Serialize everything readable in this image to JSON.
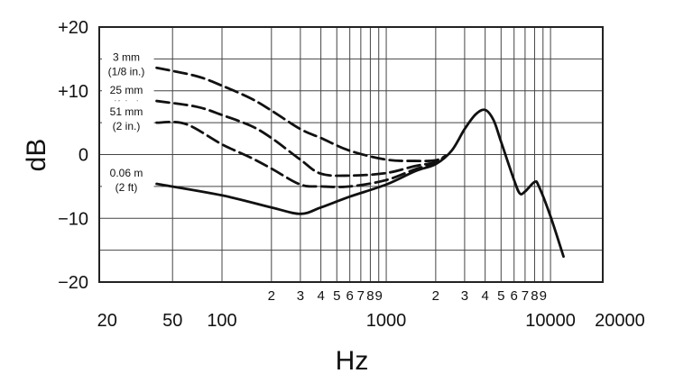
{
  "chart_data": {
    "type": "line",
    "title": "",
    "xlabel": "Hz",
    "ylabel": "dB",
    "xscale": "log",
    "xlim": [
      17.9,
      20800
    ],
    "ylim": [
      -20,
      20
    ],
    "grid": true,
    "y_ticks": [
      {
        "value": 20,
        "label": "+20"
      },
      {
        "value": 10,
        "label": "+10"
      },
      {
        "value": 0,
        "label": "0"
      },
      {
        "value": -10,
        "label": "−10"
      },
      {
        "value": -20,
        "label": "−20"
      }
    ],
    "y_grid": [
      20,
      15,
      10,
      5,
      0,
      -5,
      -10,
      -15,
      -20
    ],
    "x_grid": [
      50,
      100,
      200,
      300,
      400,
      500,
      600,
      700,
      800,
      900,
      1000,
      2000,
      3000,
      4000,
      5000,
      6000,
      7000,
      8000,
      9000,
      10000
    ],
    "x_major_labels": [
      {
        "value": 20,
        "label": "20"
      },
      {
        "value": 50,
        "label": "50"
      },
      {
        "value": 100,
        "label": "100"
      },
      {
        "value": 1000,
        "label": "1000"
      },
      {
        "value": 10000,
        "label": "10000"
      },
      {
        "value": 20000,
        "label": "20000"
      }
    ],
    "x_minor_labels": [
      {
        "value": 200,
        "label": "2"
      },
      {
        "value": 300,
        "label": "3"
      },
      {
        "value": 400,
        "label": "4"
      },
      {
        "value": 500,
        "label": "5"
      },
      {
        "value": 600,
        "label": "6"
      },
      {
        "value": 700,
        "label": "7"
      },
      {
        "value": 800,
        "label": "8"
      },
      {
        "value": 900,
        "label": "9"
      },
      {
        "value": 2000,
        "label": "2"
      },
      {
        "value": 3000,
        "label": "3"
      },
      {
        "value": 4000,
        "label": "4"
      },
      {
        "value": 5000,
        "label": "5"
      },
      {
        "value": 6000,
        "label": "6"
      },
      {
        "value": 7000,
        "label": "7"
      },
      {
        "value": 8000,
        "label": "8"
      },
      {
        "value": 9000,
        "label": "9"
      }
    ],
    "series": [
      {
        "name": "3 mm (1/8 in.)",
        "label_lines": [
          "3 mm",
          "(1/8 in.)"
        ],
        "style": "dashed",
        "x": [
          40,
          70,
          100,
          150,
          200,
          300,
          400,
          600,
          1000,
          1500,
          2000,
          2300
        ],
        "y": [
          13.6,
          12.3,
          10.8,
          8.8,
          6.9,
          4.0,
          2.6,
          0.6,
          -0.8,
          -1.0,
          -0.9,
          -0.2
        ]
      },
      {
        "name": "25 mm (1 in.)",
        "label_lines": [
          "25 mm",
          "(1 in.)"
        ],
        "style": "dashed",
        "x": [
          40,
          70,
          100,
          150,
          200,
          300,
          400,
          600,
          1000,
          1500,
          2000,
          2300
        ],
        "y": [
          8.4,
          7.5,
          6.2,
          4.5,
          2.6,
          -0.8,
          -3.0,
          -3.3,
          -2.9,
          -1.8,
          -1.2,
          -0.2
        ]
      },
      {
        "name": "51 mm (2 in.)",
        "label_lines": [
          "51 mm",
          "(2 in.)"
        ],
        "style": "dashed",
        "x": [
          40,
          60,
          100,
          150,
          200,
          300,
          400,
          600,
          1000,
          1500,
          2000,
          2300
        ],
        "y": [
          5.0,
          4.8,
          1.6,
          -0.5,
          -2.2,
          -4.7,
          -5.0,
          -5.0,
          -4.0,
          -2.3,
          -1.4,
          -0.2
        ]
      },
      {
        "name": "0.06 m (2 ft)",
        "label_lines": [
          "0.06 m",
          "(2 ft)"
        ],
        "style": "solid",
        "x": [
          40,
          100,
          200,
          300,
          400,
          600,
          1000,
          1500,
          2000,
          2500,
          3000,
          3500,
          4000,
          4500,
          5000,
          6000,
          6500,
          7000,
          8000,
          8500,
          10000,
          12000
        ],
        "y": [
          -4.6,
          -6.4,
          -8.3,
          -9.3,
          -8.3,
          -6.6,
          -4.7,
          -2.6,
          -1.5,
          0.6,
          4.0,
          6.3,
          7.0,
          5.4,
          2.0,
          -4.0,
          -6.1,
          -5.8,
          -4.3,
          -5.0,
          -9.7,
          -16.0
        ]
      }
    ]
  }
}
